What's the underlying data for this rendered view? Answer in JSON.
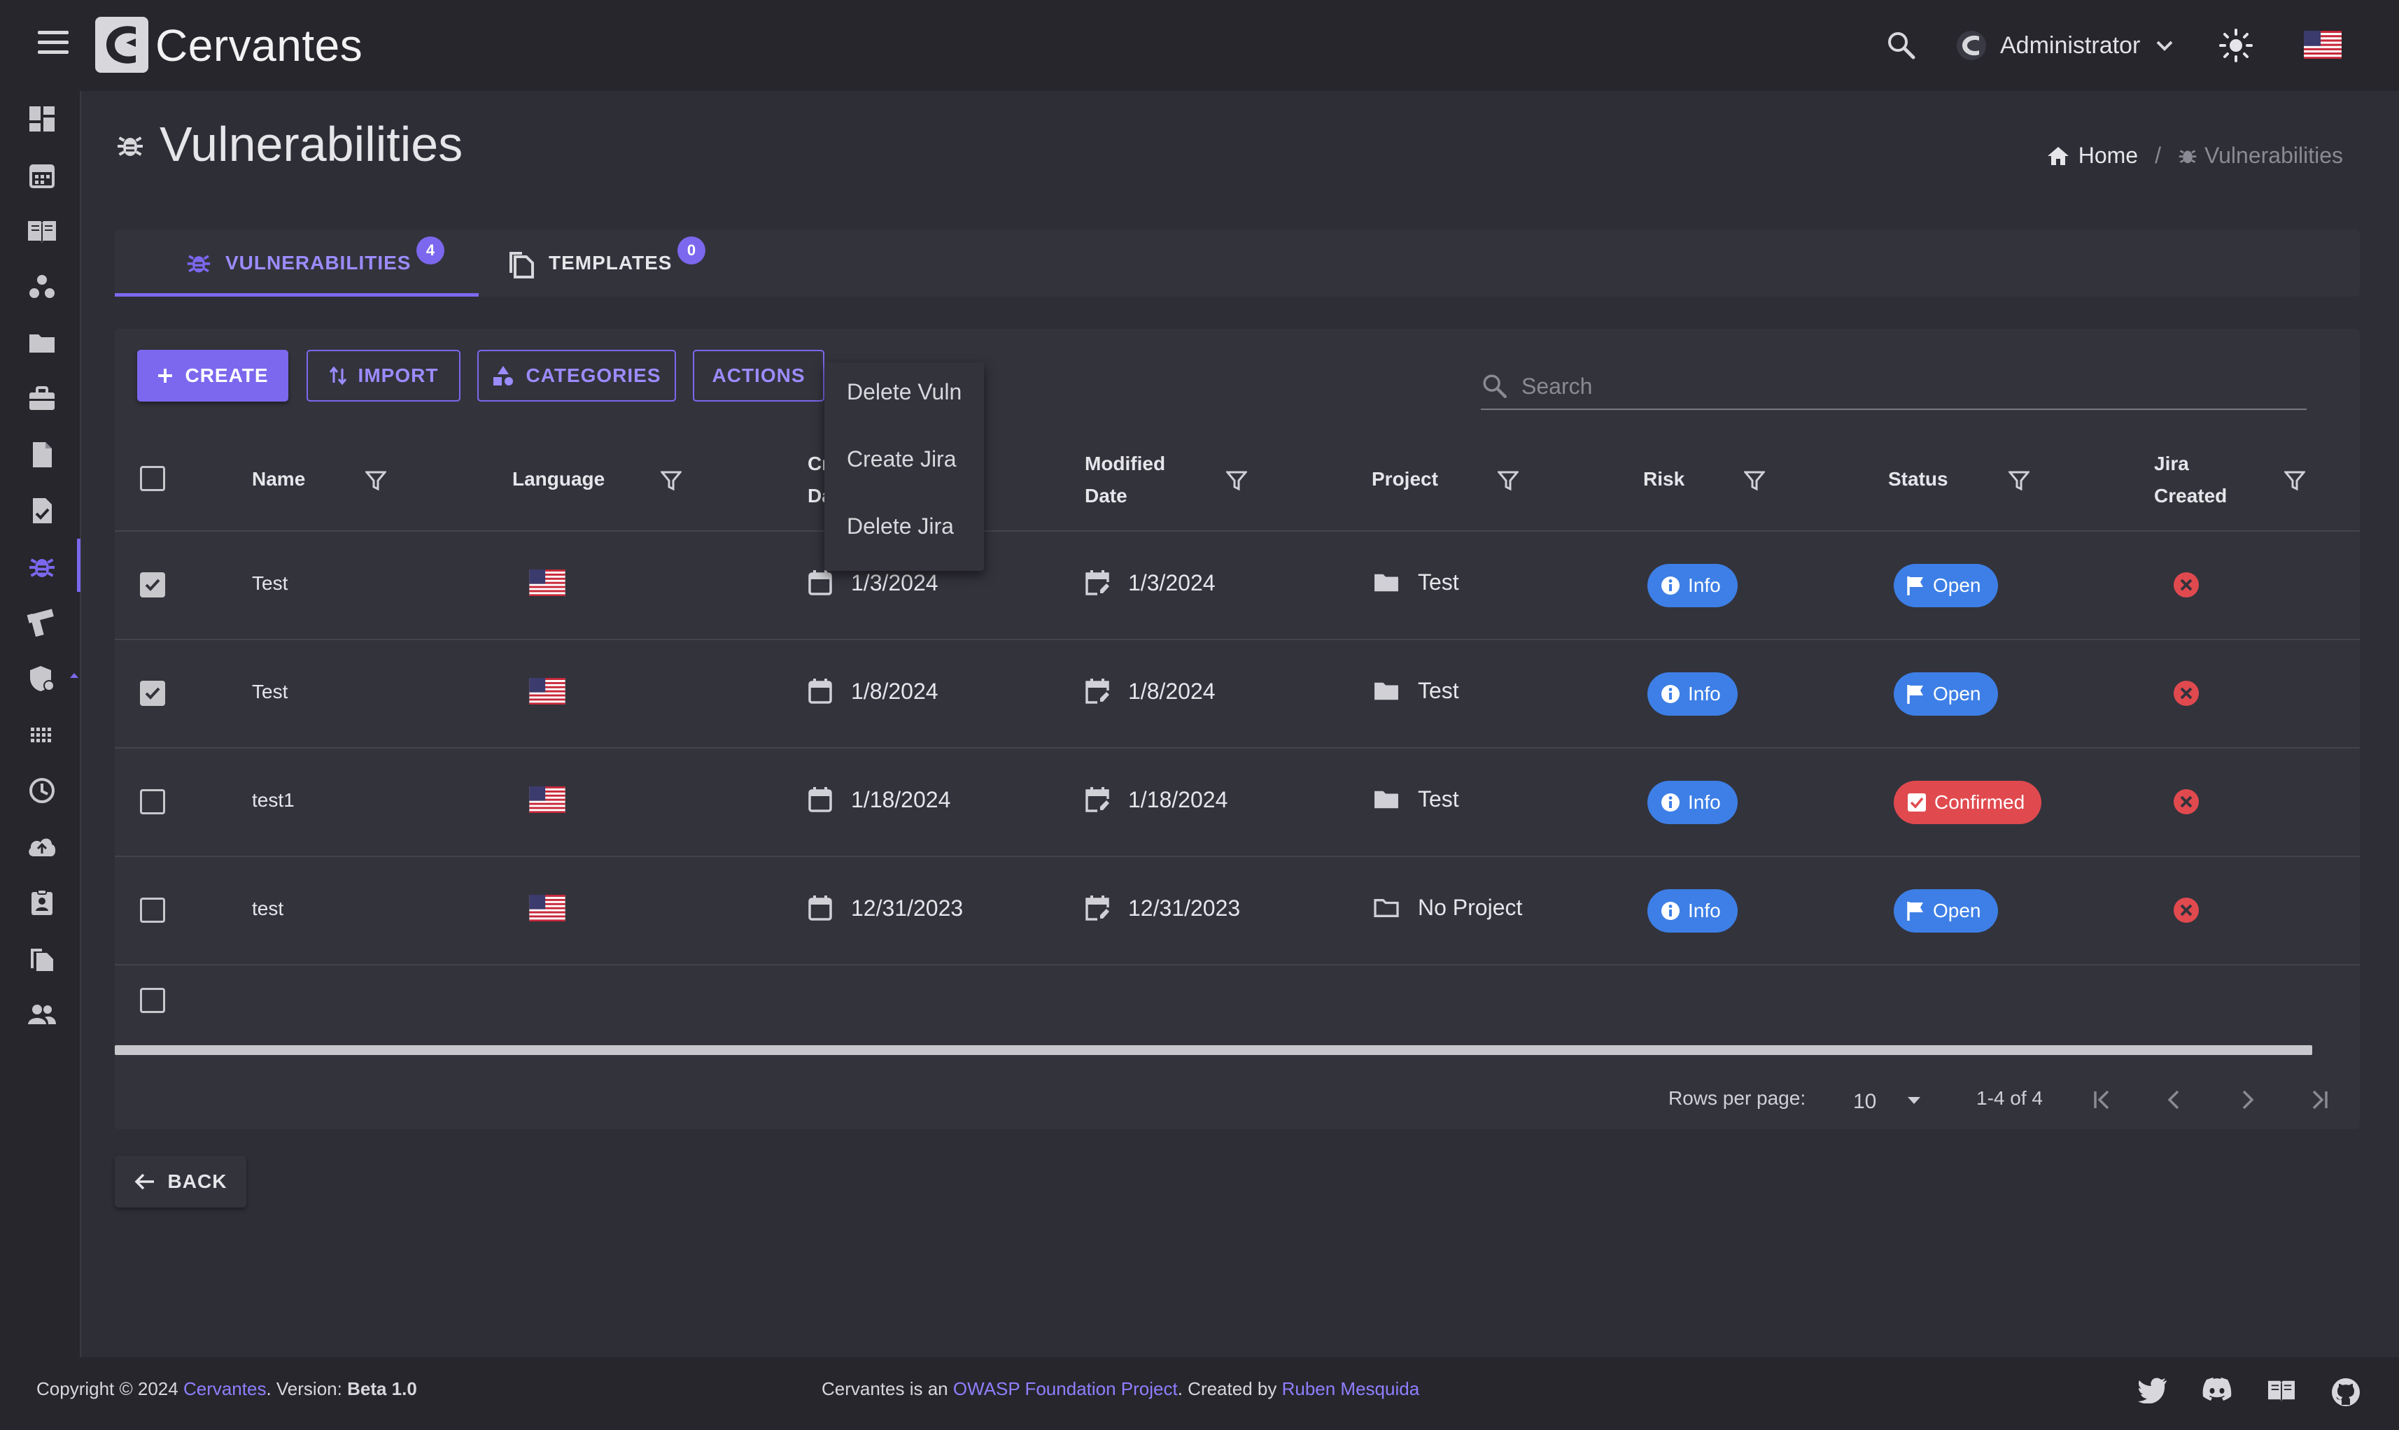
{
  "app": {
    "title": "Cervantes"
  },
  "user": {
    "name": "Administrator"
  },
  "page": {
    "title": "Vulnerabilities"
  },
  "breadcrumb": {
    "home": "Home",
    "current": "Vulnerabilities"
  },
  "tabs": [
    {
      "label": "VULNERABILITIES",
      "badge": "4",
      "active": true
    },
    {
      "label": "TEMPLATES",
      "badge": "0",
      "active": false
    }
  ],
  "toolbar": {
    "create": "CREATE",
    "import": "IMPORT",
    "categories": "CATEGORIES",
    "actions": "ACTIONS"
  },
  "search": {
    "placeholder": "Search"
  },
  "actions_menu": [
    "Delete Vuln",
    "Create Jira",
    "Delete Jira"
  ],
  "table": {
    "columns": {
      "name": "Name",
      "language": "Language",
      "created_line1": "Cr",
      "created_line2": "Da",
      "modified_line1": "Modified",
      "modified_line2": "Date",
      "project": "Project",
      "risk": "Risk",
      "status": "Status",
      "jira_line1": "Jira",
      "jira_line2": "Created"
    },
    "rows": [
      {
        "checked": true,
        "name": "Test",
        "language": "us-flag",
        "created": "1/3/2024",
        "modified": "1/3/2024",
        "project": "Test",
        "risk": "Info",
        "status": "Open",
        "jira": "no"
      },
      {
        "checked": true,
        "name": "Test",
        "language": "us-flag",
        "created": "1/8/2024",
        "modified": "1/8/2024",
        "project": "Test",
        "risk": "Info",
        "status": "Open",
        "jira": "no"
      },
      {
        "checked": false,
        "name": "test1",
        "language": "us-flag",
        "created": "1/18/2024",
        "modified": "1/18/2024",
        "project": "Test",
        "risk": "Info",
        "status": "Confirmed",
        "jira": "no"
      },
      {
        "checked": false,
        "name": "test",
        "language": "us-flag",
        "created": "12/31/2023",
        "modified": "12/31/2023",
        "project": "No Project",
        "risk": "Info",
        "status": "Open",
        "jira": "no"
      }
    ]
  },
  "pagination": {
    "rows_per_page_label": "Rows per page:",
    "rows_per_page_value": "10",
    "range": "1-4 of 4"
  },
  "back": {
    "label": "BACK"
  },
  "footer": {
    "copyright": "Copyright © 2024",
    "brand": "Cervantes",
    "version_label": ". Version:",
    "version": "Beta 1.0",
    "middle_prefix": "Cervantes is an",
    "owasp": "OWASP Foundation Project",
    "created_by": ". Created by",
    "author": "Ruben Mesquida"
  },
  "colors": {
    "accent": "#7b68ee",
    "info": "#3d7fe6",
    "danger": "#e04a4f",
    "background": "#2e2e36",
    "surface": "#33333c"
  }
}
